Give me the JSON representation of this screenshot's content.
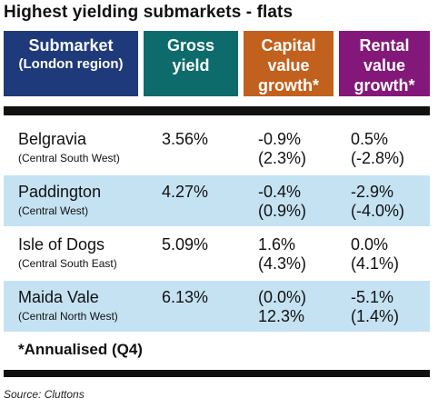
{
  "title": "Highest yielding submarkets - flats",
  "headers": {
    "submarket": [
      "Submarket",
      "(London region)"
    ],
    "gross_yield": [
      "Gross",
      "yield"
    ],
    "capital_value_growth": [
      "Capital",
      "value",
      "growth*"
    ],
    "rental_value_growth": [
      "Rental",
      "value",
      "growth*"
    ]
  },
  "colors": {
    "submarket_header": "#1f3a7a",
    "gross_yield_header": "#0e6b6b",
    "capital_header": "#c2601d",
    "rental_header": "#84177a",
    "row_shading": "#c5e2f3"
  },
  "rows": [
    {
      "name": "Belgravia",
      "region": "(Central South West)",
      "gross_yield": "3.56%",
      "capital": [
        "-0.9%",
        "(2.3%)"
      ],
      "rental": [
        "0.5%",
        "(-2.8%)"
      ]
    },
    {
      "name": "Paddington",
      "region": "(Central West)",
      "gross_yield": "4.27%",
      "capital": [
        "-0.4%",
        "(0.9%)"
      ],
      "rental": [
        "-2.9%",
        "(-4.0%)"
      ]
    },
    {
      "name": "Isle of Dogs",
      "region": "(Central South East)",
      "gross_yield": "5.09%",
      "capital": [
        "1.6%",
        "(4.3%)"
      ],
      "rental": [
        "0.0%",
        "(4.1%)"
      ]
    },
    {
      "name": "Maida Vale",
      "region": "(Central North West)",
      "gross_yield": "6.13%",
      "capital": [
        "(0.0%)",
        "12.3%"
      ],
      "rental": [
        "-5.1%",
        "(1.4%)"
      ]
    }
  ],
  "footnote": "*Annualised (Q4)",
  "source": "Source: Cluttons"
}
